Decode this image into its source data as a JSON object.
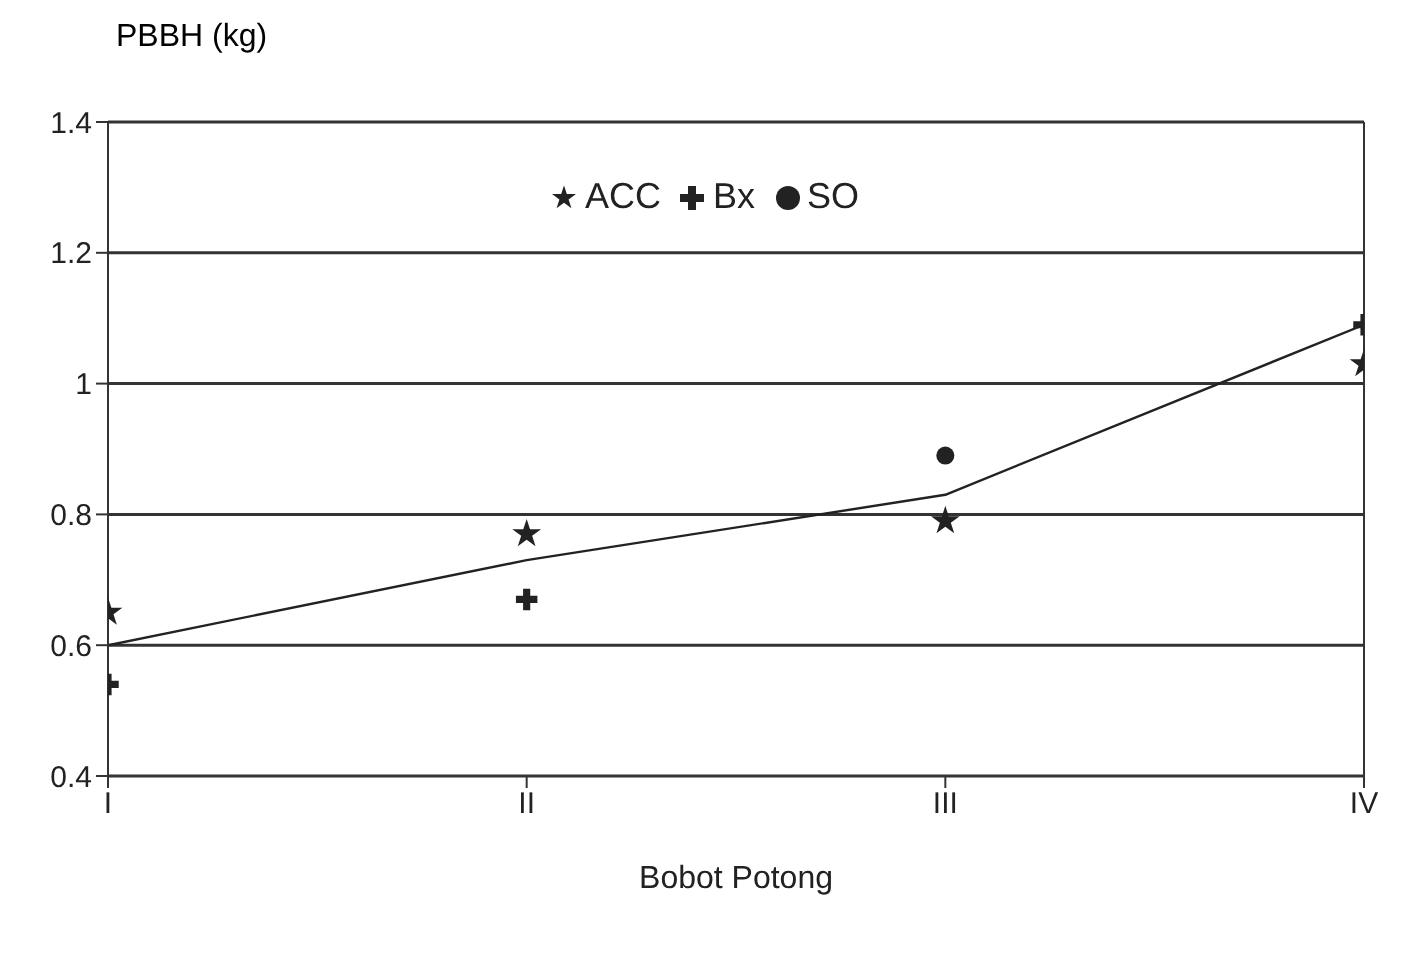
{
  "chart_data": {
    "type": "scatter",
    "categories": [
      "I",
      "II",
      "III",
      "IV"
    ],
    "xlabel": "Bobot Potong",
    "ylabel": "PBBH (kg)",
    "ylim": [
      0.4,
      1.4
    ],
    "yticks": [
      0.4,
      0.6,
      0.8,
      1,
      1.2,
      1.4
    ],
    "grid": "y",
    "legend": "top",
    "series": [
      {
        "name": "SO",
        "color": "#222222",
        "marker": "circle",
        "values": [
          null,
          null,
          0.89,
          null
        ]
      },
      {
        "name": "Bx",
        "color": "#222222",
        "marker": "cross",
        "values": [
          0.54,
          0.67,
          null,
          1.09
        ]
      },
      {
        "name": "ACC",
        "color": "#222222",
        "marker": "star",
        "values": [
          0.65,
          0.77,
          0.79,
          1.03
        ]
      },
      {
        "type": "line",
        "color": "#222222",
        "marker": "none",
        "values": [
          0.6,
          0.73,
          0.83,
          1.09
        ]
      }
    ]
  }
}
